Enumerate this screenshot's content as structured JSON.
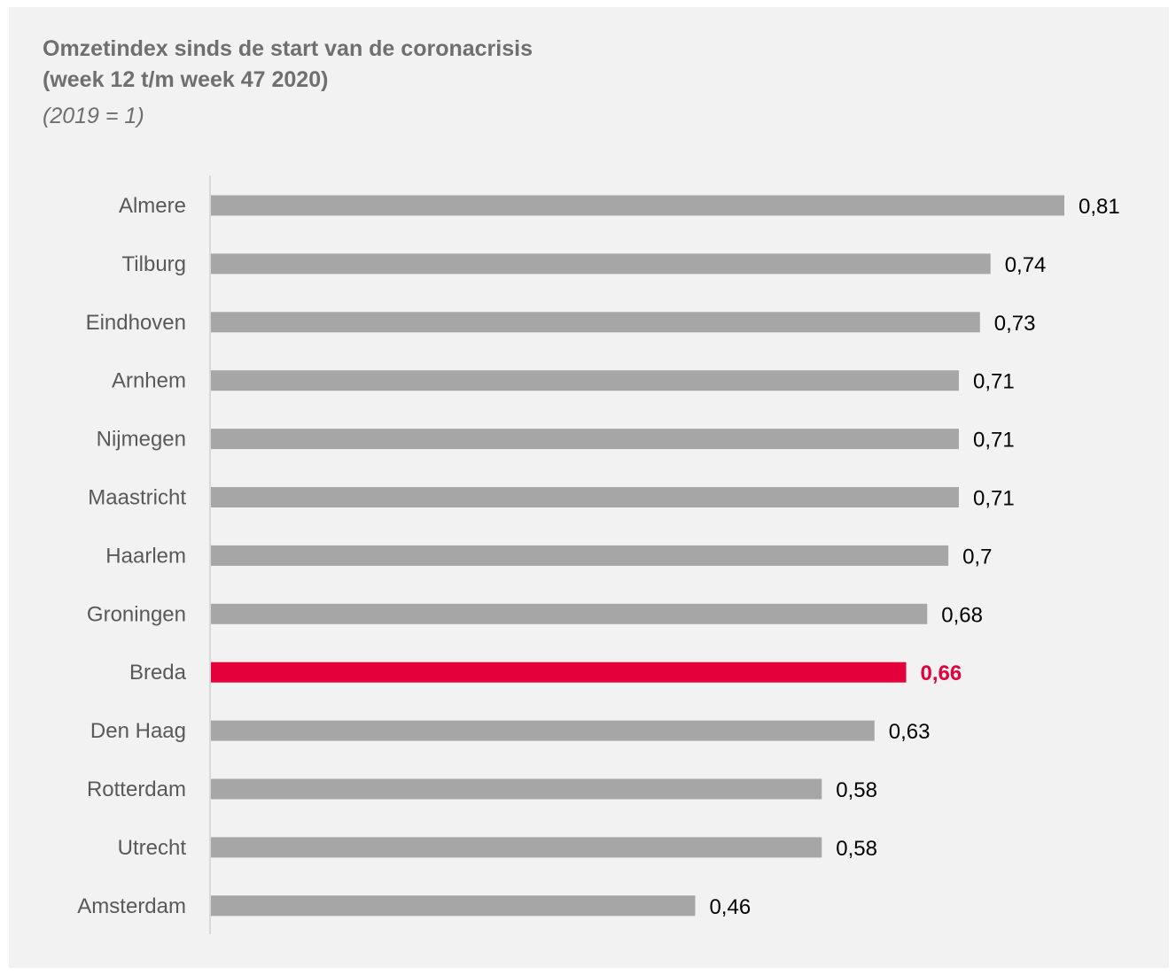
{
  "chart_data": {
    "type": "bar",
    "orientation": "horizontal",
    "title_lines": [
      "Omzetindex sinds de start van de coronacrisis",
      "(week 12 t/m week 47 2020)"
    ],
    "subtitle": "(2019 = 1)",
    "categories": [
      "Almere",
      "Tilburg",
      "Eindhoven",
      "Arnhem",
      "Nijmegen",
      "Maastricht",
      "Haarlem",
      "Groningen",
      "Breda",
      "Den Haag",
      "Rotterdam",
      "Utrecht",
      "Amsterdam"
    ],
    "values": [
      0.81,
      0.74,
      0.73,
      0.71,
      0.71,
      0.71,
      0.7,
      0.68,
      0.66,
      0.63,
      0.58,
      0.58,
      0.46
    ],
    "value_labels": [
      "0,81",
      "0,74",
      "0,73",
      "0,71",
      "0,71",
      "0,71",
      "0,7",
      "0,68",
      "0,66",
      "0,63",
      "0,58",
      "0,58",
      "0,46"
    ],
    "highlight_category": "Breda",
    "xlim": [
      0,
      0.81
    ],
    "xlabel": "",
    "ylabel": "",
    "grid": false,
    "legend": "none",
    "colors": {
      "bar": "#a6a6a6",
      "highlight": "#e4003b",
      "axis": "#d9d9d9",
      "category_text": "#595959",
      "value_text": "#000000",
      "title_text": "#6f6f6f",
      "background": "#f2f2f2"
    }
  }
}
